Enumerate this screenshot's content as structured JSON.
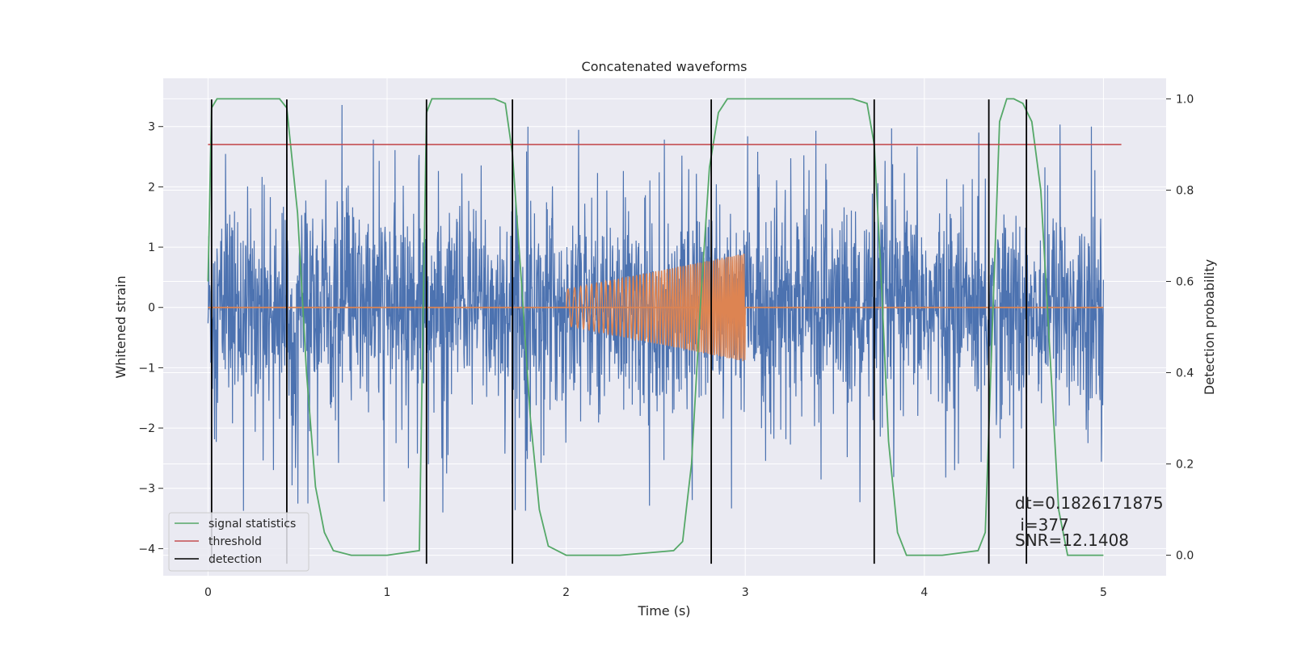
{
  "chart_data": {
    "type": "line",
    "title": "Concatenated waveforms",
    "xlabel": "Time (s)",
    "ylabel": "Whitened strain",
    "y2label": "Detection probability",
    "xlim": [
      -0.25,
      5.35
    ],
    "ylim": [
      -4.45,
      3.8
    ],
    "y2lim": [
      -0.045,
      1.045
    ],
    "xticks": [
      0,
      1,
      2,
      3,
      4,
      5
    ],
    "yticks": [
      -4,
      -3,
      -2,
      -1,
      0,
      1,
      2,
      3
    ],
    "y2ticks": [
      0.0,
      0.2,
      0.4,
      0.6,
      0.8,
      1.0
    ],
    "xtick_labels": [
      "0",
      "1",
      "2",
      "3",
      "4",
      "5"
    ],
    "ytick_labels": [
      "−4",
      "−3",
      "−2",
      "−1",
      "0",
      "1",
      "2",
      "3"
    ],
    "y2tick_labels": [
      "0.0",
      "0.2",
      "0.4",
      "0.6",
      "0.8",
      "1.0"
    ],
    "grid": true,
    "legend_position": "lower-left",
    "colors": {
      "plot_background": "#eaeaf2",
      "strain": "#4c72b0",
      "injection": "#dd8452",
      "signal_statistics": "#55a868",
      "threshold": "#c44e52",
      "detection": "#000000"
    },
    "series": [
      {
        "name": "signal statistics",
        "axis": "right",
        "x": [
          0.0,
          0.02,
          0.05,
          0.1,
          0.4,
          0.44,
          0.5,
          0.55,
          0.6,
          0.65,
          0.7,
          0.8,
          1.0,
          1.18,
          1.2,
          1.22,
          1.25,
          1.28,
          1.3,
          1.6,
          1.66,
          1.7,
          1.75,
          1.8,
          1.85,
          1.9,
          2.0,
          2.3,
          2.6,
          2.65,
          2.7,
          2.75,
          2.8,
          2.85,
          2.9,
          3.0,
          3.6,
          3.68,
          3.72,
          3.76,
          3.8,
          3.85,
          3.9,
          4.1,
          4.3,
          4.34,
          4.38,
          4.42,
          4.46,
          4.5,
          4.55,
          4.6,
          4.65,
          4.7,
          4.75,
          4.8,
          5.0
        ],
        "y": [
          0.6,
          0.98,
          1.0,
          1.0,
          1.0,
          0.98,
          0.75,
          0.4,
          0.15,
          0.05,
          0.01,
          0.0,
          0.0,
          0.01,
          0.5,
          0.97,
          1.0,
          1.0,
          1.0,
          1.0,
          0.99,
          0.88,
          0.6,
          0.3,
          0.1,
          0.02,
          0.0,
          0.0,
          0.01,
          0.03,
          0.2,
          0.55,
          0.85,
          0.97,
          1.0,
          1.0,
          1.0,
          0.99,
          0.9,
          0.6,
          0.25,
          0.05,
          0.0,
          0.0,
          0.01,
          0.05,
          0.5,
          0.95,
          1.0,
          1.0,
          0.99,
          0.95,
          0.8,
          0.45,
          0.1,
          0.0,
          0.0
        ]
      },
      {
        "name": "threshold",
        "axis": "right",
        "x": [
          0.0,
          5.1
        ],
        "y": [
          0.9,
          0.9
        ]
      },
      {
        "name": "detection",
        "axis": "left",
        "type": "vlines",
        "x": [
          0.02,
          0.44,
          1.22,
          1.7,
          2.81,
          3.72,
          4.36,
          4.57
        ],
        "ymin": -4.25,
        "ymax": 3.45
      },
      {
        "name": "",
        "axis": "left",
        "type": "noise_band",
        "x": [
          0.0,
          5.0
        ],
        "typical_amplitude": 1.3,
        "peak_amplitude": 3.4
      },
      {
        "name": "",
        "axis": "left",
        "type": "chirp",
        "x": [
          2.0,
          3.0
        ],
        "amplitude_start": 0.3,
        "amplitude_end": 0.9
      }
    ],
    "legend": [
      "signal statistics",
      "threshold",
      "detection"
    ],
    "annotation": {
      "line1": "dt=0.1826171875",
      "line2": " i=377",
      "line3": "SNR=12.1408"
    }
  }
}
